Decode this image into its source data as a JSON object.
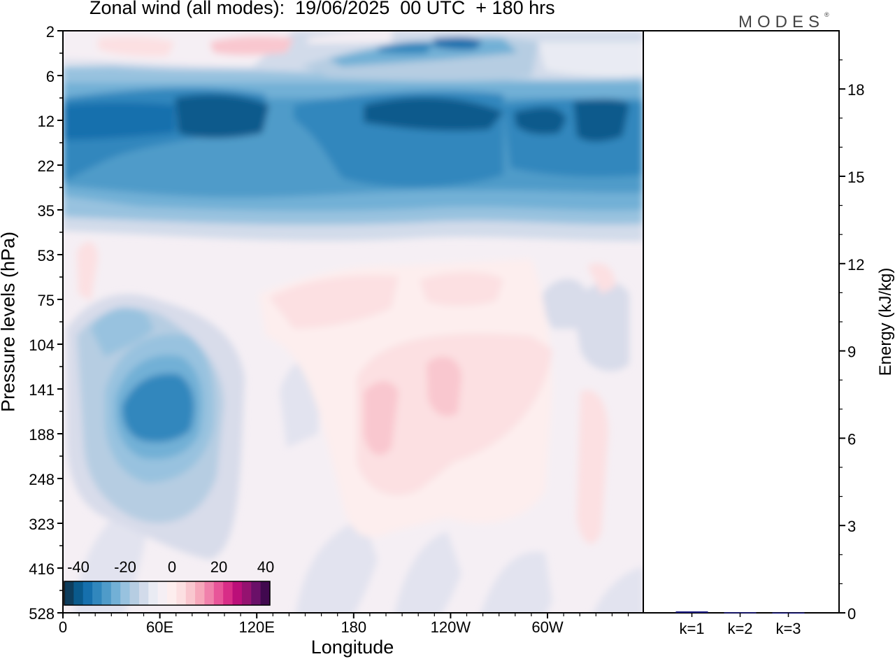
{
  "header": {
    "title": "Zonal wind (all modes):  19/06/2025  00 UTC  + 180 hrs",
    "brand": "MODES",
    "brand_mark": "®"
  },
  "chart_data": [
    {
      "type": "heatmap",
      "title": "Zonal wind (all modes):  19/06/2025  00 UTC  + 180 hrs",
      "xlabel": "Longitude",
      "ylabel": "Pressure levels (hPa)",
      "x_ticks": [
        "0",
        "60E",
        "120E",
        "180",
        "120W",
        "60W"
      ],
      "y_ticks": [
        "2",
        "6",
        "12",
        "22",
        "35",
        "53",
        "75",
        "104",
        "141",
        "188",
        "248",
        "323",
        "416",
        "528"
      ],
      "y_scale": "log (pressure levels, top = 2 hPa)",
      "colorbar": {
        "labels": [
          "-40",
          "-20",
          "0",
          "20",
          "40"
        ],
        "colors": [
          "#0e3d5c",
          "#0a5a8c",
          "#1670ad",
          "#3187bd",
          "#4f9bc9",
          "#72b0d6",
          "#98c2df",
          "#b6cde2",
          "#d2dbea",
          "#e9ebf3",
          "#f5eff4",
          "#fdeeee",
          "#fce0e2",
          "#f9c7cf",
          "#f6a8bb",
          "#f081ab",
          "#e85599",
          "#d82d87",
          "#bb0f79",
          "#951270",
          "#6a1068",
          "#41094f"
        ]
      },
      "features": [
        {
          "name": "stratospheric easterly jet",
          "level_range_hPa": [
            8,
            30
          ],
          "value_approx": -30
        },
        {
          "name": "upper easterly band",
          "level_range_hPa": [
            3,
            6
          ],
          "value_approx": -20
        },
        {
          "name": "tropical easterly jet core",
          "lon_range": [
            "30E",
            "90E"
          ],
          "level_range_hPa": [
            110,
            240
          ],
          "value_approx": -30
        },
        {
          "name": "westerly maximum",
          "lon_range": [
            "180",
            "110W"
          ],
          "level_range_hPa": [
            110,
            260
          ],
          "value_approx": 10
        }
      ],
      "colors": {
        "background": "#f5eff4",
        "easterly": "#1670ad",
        "westerly": "#f9c7cf"
      }
    },
    {
      "type": "bar",
      "ylabel": "Energy (kJ/kg)",
      "ylim": [
        0,
        20
      ],
      "y_ticks": [
        "0",
        "3",
        "6",
        "9",
        "12",
        "15",
        "18"
      ],
      "categories": [
        "k=1",
        "k=2",
        "k=3"
      ],
      "values": [
        0.05,
        0.02,
        0.01
      ],
      "colors": {
        "bar": "#1a1a80"
      }
    }
  ]
}
